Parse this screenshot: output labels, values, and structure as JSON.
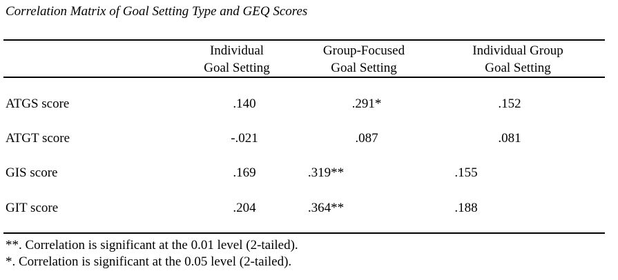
{
  "title": "Correlation Matrix of Goal Setting Type and GEQ Scores",
  "table": {
    "header": {
      "columns": [
        {
          "line1": "Individual",
          "line2": "Goal Setting"
        },
        {
          "line1": "Group-Focused",
          "line2": "Goal Setting"
        },
        {
          "line1": "Individual Group",
          "line2": "Goal Setting"
        }
      ]
    },
    "rows": [
      {
        "label": "ATGS score",
        "values": [
          ".140",
          ".291*",
          ".152"
        ]
      },
      {
        "label": "ATGT score",
        "values": [
          "-.021",
          ".087",
          ".081"
        ]
      },
      {
        "label": "GIS score",
        "values": [
          ".169",
          ".319**",
          ".155"
        ]
      },
      {
        "label": "GIT score",
        "values": [
          ".204",
          ".364**",
          ".188"
        ]
      }
    ]
  },
  "footnotes": [
    "**. Correlation is significant at the 0.01 level (2-tailed).",
    "*. Correlation is significant at the 0.05 level (2-tailed)."
  ],
  "colors": {
    "text": "#000000",
    "background": "#ffffff",
    "rule": "#000000"
  }
}
